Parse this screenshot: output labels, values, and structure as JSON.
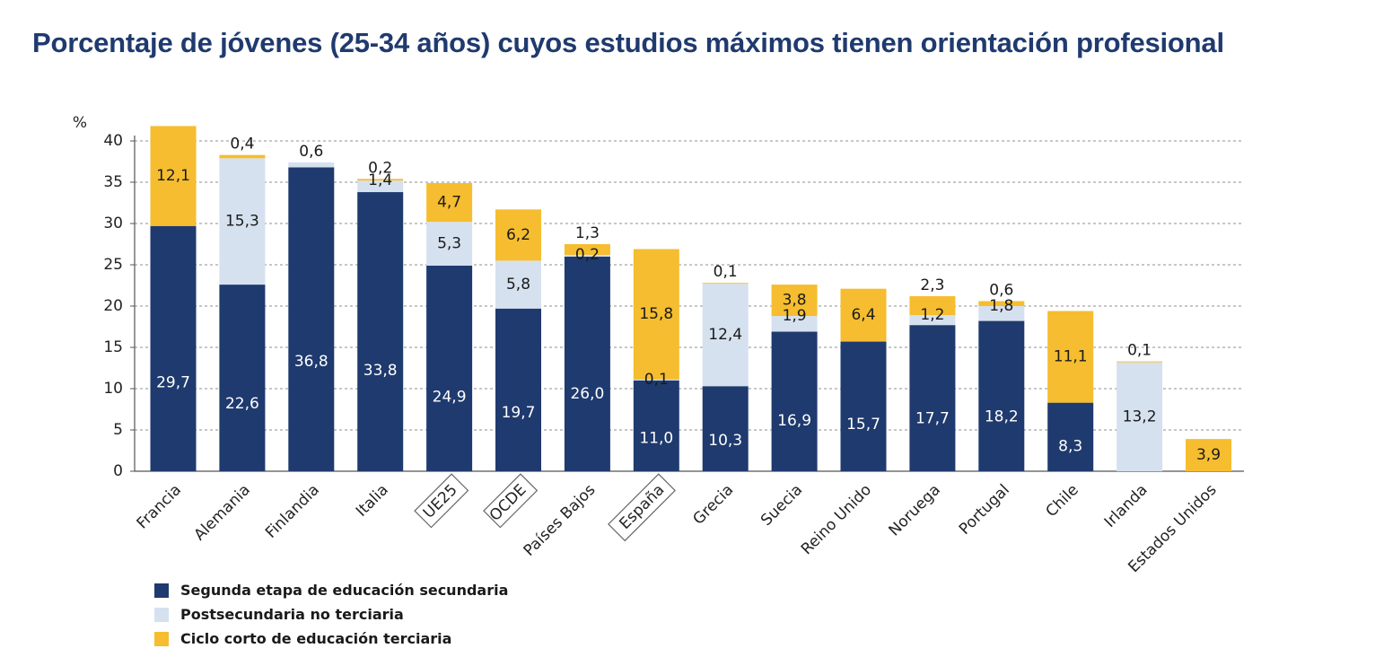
{
  "title": "Porcentaje de jóvenes (25-34 años) cuyos estudios máximos tienen orientación profesional",
  "chart_data": {
    "type": "bar",
    "stacked": true,
    "ylabel": "%",
    "ylim": [
      0,
      40
    ],
    "yticks": [
      "0",
      "5",
      "10",
      "15",
      "20",
      "25",
      "30",
      "35",
      "40"
    ],
    "grid": true,
    "legend_position": "bottom-left",
    "categories": [
      "Francia",
      "Alemania",
      "Finlandia",
      "Italia",
      "UE25",
      "OCDE",
      "Países Bajos",
      "España",
      "Grecia",
      "Suecia",
      "Reino Unido",
      "Noruega",
      "Portugal",
      "Chile",
      "Irlanda",
      "Estados Unidos"
    ],
    "boxed_categories": [
      "UE25",
      "OCDE",
      "España"
    ],
    "series": [
      {
        "name": "Segunda etapa de educación secundaria",
        "color": "#1f3a6e",
        "values": [
          29.7,
          22.6,
          36.8,
          33.8,
          24.9,
          19.7,
          26.0,
          11.0,
          10.3,
          16.9,
          15.7,
          17.7,
          18.2,
          8.3,
          null,
          null
        ],
        "labels": [
          "29,7",
          "22,6",
          "36,8",
          "33,8",
          "24,9",
          "19,7",
          "26,0",
          "11,0",
          "10,3",
          "16,9",
          "15,7",
          "17,7",
          "18,2",
          "8,3",
          "",
          ""
        ]
      },
      {
        "name": "Postsecundaria no terciaria",
        "color": "#d6e1ef",
        "values": [
          null,
          15.3,
          0.6,
          1.4,
          5.3,
          5.8,
          0.2,
          0.1,
          12.4,
          1.9,
          null,
          1.2,
          1.8,
          null,
          13.2,
          null
        ],
        "labels": [
          "",
          "15,3",
          "0,6",
          "1,4",
          "5,3",
          "5,8",
          "0,2",
          "0,1",
          "12,4",
          "1,9",
          "",
          "1,2",
          "1,8",
          "",
          "13,2",
          ""
        ]
      },
      {
        "name": "Ciclo corto de educación terciaria",
        "color": "#f5bd2f",
        "values": [
          12.1,
          0.4,
          null,
          0.2,
          4.7,
          6.2,
          1.3,
          15.8,
          0.1,
          3.8,
          6.4,
          2.3,
          0.6,
          11.1,
          0.1,
          3.9
        ],
        "labels": [
          "12,1",
          "0,4",
          "",
          "0,2",
          "4,7",
          "6,2",
          "1,3",
          "15,8",
          "0,1",
          "3,8",
          "6,4",
          "2,3",
          "0,6",
          "11,1",
          "0,1",
          "3,9"
        ]
      }
    ]
  }
}
